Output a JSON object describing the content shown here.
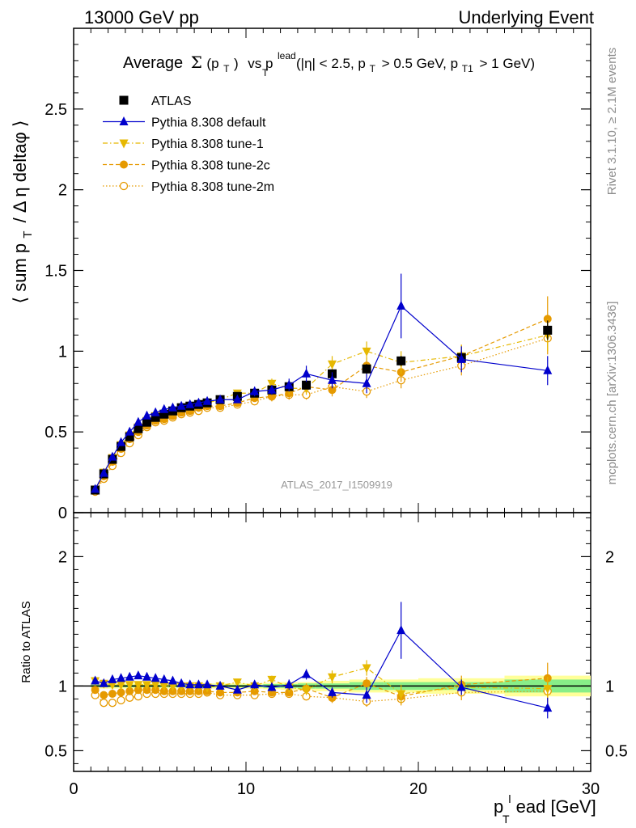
{
  "header": {
    "left": "13000 GeV pp",
    "right": "Underlying Event"
  },
  "title": {
    "prefix": "Average",
    "sigma": "Σ",
    "sigma_arg": "(p",
    "sigma_sub": "T",
    "sigma_close": ")",
    "vs": "vs p",
    "vs_sup": "lead",
    "vs_sub": "T",
    "cuts_1": "(|η| < 2.5, p",
    "cuts_1_sub": "T",
    "cuts_2": "> 0.5 GeV, p",
    "cuts_2_sub": "T1",
    "cuts_3": "> 1 GeV)"
  },
  "side_labels": {
    "rivet": "Rivet 3.1.10, ≥ 2.1M events",
    "mcplots": "mcplots.cern.ch [arXiv:1306.3436]"
  },
  "watermark": "ATLAS_2017_I1509919",
  "ylabel_main": {
    "part1": "⟨ sum p",
    "sub": "T",
    "part2": "/ Δ η deltaφ ⟩"
  },
  "ylabel_ratio": "Ratio to ATLAS",
  "xlabel": {
    "p": "p",
    "sup": "l",
    "sub": "T",
    "rest": "ead [GeV]"
  },
  "legend": [
    {
      "label": "ATLAS",
      "color": "#000000",
      "marker": "square",
      "dash": "none"
    },
    {
      "label": "Pythia 8.308 default",
      "color": "#0000cc",
      "marker": "triangle-up",
      "dash": "solid"
    },
    {
      "label": "Pythia 8.308 tune-1",
      "color": "#e6b800",
      "marker": "triangle-down",
      "dash": "dashdot"
    },
    {
      "label": "Pythia 8.308 tune-2c",
      "color": "#e69a00",
      "marker": "circle-filled",
      "dash": "dashed"
    },
    {
      "label": "Pythia 8.308 tune-2m",
      "color": "#e69a00",
      "marker": "circle-open",
      "dash": "dotted"
    }
  ],
  "chart_data": [
    {
      "type": "line",
      "panel": "main",
      "xlim": [
        0,
        30
      ],
      "ylim": [
        0,
        3
      ],
      "xticks": [
        0,
        10,
        20,
        30
      ],
      "yticks": [
        0,
        0.5,
        1,
        1.5,
        2,
        2.5
      ],
      "ytick_labels": [
        "0",
        "0.5",
        "1",
        "1.5",
        "2",
        "2.5"
      ],
      "x": [
        1.25,
        1.75,
        2.25,
        2.75,
        3.25,
        3.75,
        4.25,
        4.75,
        5.25,
        5.75,
        6.25,
        6.75,
        7.25,
        7.75,
        8.5,
        9.5,
        10.5,
        11.5,
        12.5,
        13.5,
        15.0,
        17.0,
        19.0,
        22.5,
        27.5
      ],
      "series": [
        {
          "name": "ATLAS",
          "values": [
            0.14,
            0.24,
            0.33,
            0.41,
            0.47,
            0.52,
            0.56,
            0.59,
            0.61,
            0.63,
            0.65,
            0.66,
            0.67,
            0.68,
            0.7,
            0.72,
            0.74,
            0.76,
            0.78,
            0.79,
            0.86,
            0.89,
            0.94,
            0.96,
            1.13
          ],
          "errors": [
            0.01,
            0.01,
            0.01,
            0.01,
            0.01,
            0.01,
            0.01,
            0.01,
            0.01,
            0.01,
            0.01,
            0.01,
            0.01,
            0.01,
            0.01,
            0.01,
            0.01,
            0.02,
            0.02,
            0.02,
            0.02,
            0.03,
            0.03,
            0.04,
            0.06
          ]
        },
        {
          "name": "Pythia 8.308 default",
          "values": [
            0.145,
            0.245,
            0.345,
            0.435,
            0.5,
            0.56,
            0.6,
            0.62,
            0.64,
            0.65,
            0.66,
            0.67,
            0.68,
            0.69,
            0.7,
            0.7,
            0.75,
            0.76,
            0.79,
            0.86,
            0.82,
            0.8,
            1.28,
            0.95,
            0.88
          ],
          "errors": [
            0.01,
            0.01,
            0.01,
            0.01,
            0.01,
            0.01,
            0.01,
            0.01,
            0.01,
            0.01,
            0.01,
            0.01,
            0.01,
            0.01,
            0.02,
            0.02,
            0.03,
            0.03,
            0.04,
            0.05,
            0.05,
            0.06,
            0.2,
            0.08,
            0.09
          ]
        },
        {
          "name": "Pythia 8.308 tune-1",
          "values": [
            0.145,
            0.25,
            0.34,
            0.42,
            0.48,
            0.53,
            0.57,
            0.6,
            0.61,
            0.63,
            0.65,
            0.66,
            0.67,
            0.68,
            0.7,
            0.74,
            0.74,
            0.8,
            0.77,
            0.77,
            0.92,
            1.0,
            0.93,
            0.97,
            1.1
          ],
          "errors": [
            0.01,
            0.01,
            0.01,
            0.01,
            0.01,
            0.01,
            0.01,
            0.01,
            0.01,
            0.01,
            0.01,
            0.01,
            0.01,
            0.01,
            0.02,
            0.02,
            0.03,
            0.03,
            0.04,
            0.04,
            0.05,
            0.06,
            0.07,
            0.07,
            0.1
          ]
        },
        {
          "name": "Pythia 8.308 tune-2c",
          "values": [
            0.14,
            0.225,
            0.315,
            0.395,
            0.455,
            0.5,
            0.54,
            0.57,
            0.58,
            0.6,
            0.62,
            0.63,
            0.65,
            0.66,
            0.66,
            0.68,
            0.71,
            0.72,
            0.74,
            0.78,
            0.76,
            0.91,
            0.87,
            0.97,
            1.2
          ],
          "errors": [
            0.01,
            0.01,
            0.01,
            0.01,
            0.01,
            0.01,
            0.01,
            0.01,
            0.01,
            0.01,
            0.01,
            0.01,
            0.01,
            0.01,
            0.02,
            0.02,
            0.02,
            0.03,
            0.03,
            0.04,
            0.04,
            0.05,
            0.06,
            0.07,
            0.14
          ]
        },
        {
          "name": "Pythia 8.308 tune-2m",
          "values": [
            0.13,
            0.21,
            0.29,
            0.37,
            0.43,
            0.48,
            0.53,
            0.56,
            0.57,
            0.59,
            0.61,
            0.62,
            0.63,
            0.65,
            0.65,
            0.67,
            0.69,
            0.72,
            0.73,
            0.73,
            0.78,
            0.75,
            0.82,
            0.91,
            1.08
          ],
          "errors": [
            0.01,
            0.01,
            0.01,
            0.01,
            0.01,
            0.01,
            0.01,
            0.01,
            0.01,
            0.01,
            0.01,
            0.01,
            0.01,
            0.01,
            0.02,
            0.02,
            0.02,
            0.03,
            0.03,
            0.03,
            0.04,
            0.04,
            0.05,
            0.06,
            0.1
          ]
        }
      ]
    },
    {
      "type": "line",
      "panel": "ratio",
      "xlim": [
        0,
        30
      ],
      "ylim": [
        0.34,
        2.34
      ],
      "xticks": [
        0,
        10,
        20,
        30
      ],
      "xtick_labels": [
        "0",
        "10",
        "20",
        "30"
      ],
      "yticks": [
        0.5,
        1,
        2
      ],
      "ytick_labels": [
        "0.5",
        "1",
        "2"
      ],
      "reference": 1,
      "x": [
        1.25,
        1.75,
        2.25,
        2.75,
        3.25,
        3.75,
        4.25,
        4.75,
        5.25,
        5.75,
        6.25,
        6.75,
        7.25,
        7.75,
        8.5,
        9.5,
        10.5,
        11.5,
        12.5,
        13.5,
        15.0,
        17.0,
        19.0,
        22.5,
        27.5
      ],
      "bands": {
        "x_edges": [
          1.0,
          1.5,
          2.0,
          2.5,
          3.0,
          3.5,
          4.0,
          4.5,
          5.0,
          5.5,
          6.0,
          6.5,
          7.0,
          7.5,
          8.0,
          9.0,
          10.0,
          11.0,
          12.0,
          13.0,
          14.0,
          16.0,
          18.0,
          20.0,
          25.0,
          30.0
        ],
        "stat_half_width": [
          0.01,
          0.01,
          0.01,
          0.01,
          0.01,
          0.01,
          0.01,
          0.01,
          0.01,
          0.01,
          0.01,
          0.01,
          0.01,
          0.01,
          0.01,
          0.01,
          0.01,
          0.015,
          0.015,
          0.02,
          0.02,
          0.03,
          0.03,
          0.03,
          0.05
        ],
        "total_half_width": [
          0.02,
          0.02,
          0.02,
          0.02,
          0.02,
          0.02,
          0.02,
          0.02,
          0.02,
          0.02,
          0.02,
          0.02,
          0.02,
          0.02,
          0.02,
          0.02,
          0.02,
          0.025,
          0.03,
          0.03,
          0.04,
          0.05,
          0.05,
          0.06,
          0.08
        ],
        "stat_color": "#88ee88",
        "total_color": "#ffff99"
      },
      "series": [
        {
          "name": "Pythia 8.308 default",
          "values": [
            1.04,
            1.02,
            1.05,
            1.06,
            1.07,
            1.08,
            1.07,
            1.06,
            1.05,
            1.04,
            1.02,
            1.01,
            1.01,
            1.01,
            1.0,
            0.97,
            1.01,
            0.99,
            1.01,
            1.09,
            0.95,
            0.93,
            1.43,
            0.99,
            0.83
          ],
          "errors": [
            0.01,
            0.01,
            0.01,
            0.01,
            0.01,
            0.01,
            0.01,
            0.01,
            0.01,
            0.01,
            0.01,
            0.01,
            0.01,
            0.01,
            0.02,
            0.02,
            0.03,
            0.03,
            0.04,
            0.04,
            0.04,
            0.06,
            0.22,
            0.06,
            0.08
          ]
        },
        {
          "name": "Pythia 8.308 tune-1",
          "values": [
            1.04,
            1.02,
            1.01,
            1.01,
            1.01,
            1.01,
            1.01,
            1.01,
            1.0,
            1.0,
            1.0,
            1.0,
            1.0,
            0.99,
            1.0,
            1.03,
            1.0,
            1.05,
            0.99,
            0.97,
            1.07,
            1.14,
            0.94,
            0.99,
            0.98
          ],
          "errors": [
            0.01,
            0.01,
            0.01,
            0.01,
            0.01,
            0.01,
            0.01,
            0.01,
            0.01,
            0.01,
            0.01,
            0.01,
            0.01,
            0.01,
            0.02,
            0.02,
            0.03,
            0.03,
            0.04,
            0.04,
            0.05,
            0.06,
            0.07,
            0.07,
            0.09
          ]
        },
        {
          "name": "Pythia 8.308 tune-2c",
          "values": [
            0.97,
            0.93,
            0.94,
            0.95,
            0.96,
            0.97,
            0.97,
            0.97,
            0.96,
            0.96,
            0.96,
            0.96,
            0.96,
            0.96,
            0.95,
            0.95,
            0.96,
            0.95,
            0.95,
            0.98,
            0.91,
            1.02,
            0.92,
            1.01,
            1.06
          ],
          "errors": [
            0.01,
            0.01,
            0.01,
            0.01,
            0.01,
            0.01,
            0.01,
            0.01,
            0.01,
            0.01,
            0.01,
            0.01,
            0.01,
            0.01,
            0.02,
            0.02,
            0.02,
            0.03,
            0.03,
            0.04,
            0.04,
            0.05,
            0.06,
            0.07,
            0.12
          ]
        },
        {
          "name": "Pythia 8.308 tune-2m",
          "values": [
            0.93,
            0.87,
            0.87,
            0.89,
            0.91,
            0.92,
            0.94,
            0.94,
            0.94,
            0.94,
            0.94,
            0.94,
            0.94,
            0.95,
            0.93,
            0.93,
            0.93,
            0.94,
            0.94,
            0.92,
            0.91,
            0.88,
            0.9,
            0.95,
            0.96
          ],
          "errors": [
            0.01,
            0.01,
            0.01,
            0.01,
            0.01,
            0.01,
            0.01,
            0.01,
            0.01,
            0.01,
            0.01,
            0.01,
            0.01,
            0.01,
            0.02,
            0.02,
            0.02,
            0.03,
            0.03,
            0.03,
            0.04,
            0.04,
            0.05,
            0.06,
            0.09
          ]
        }
      ]
    }
  ]
}
